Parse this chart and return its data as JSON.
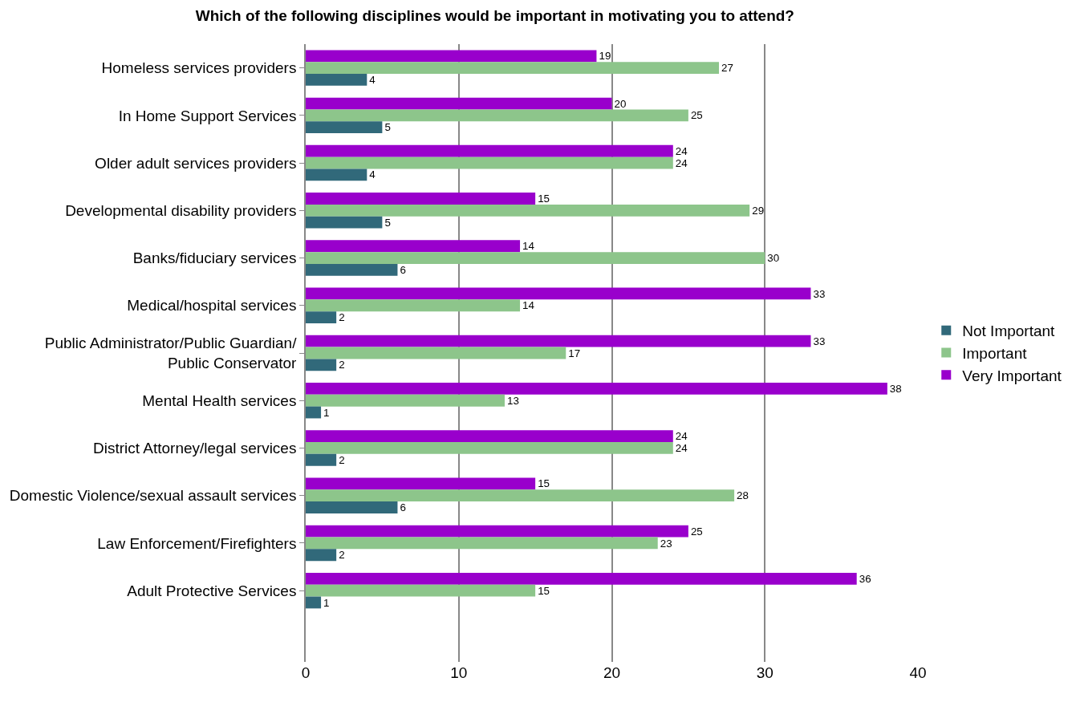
{
  "chart_data": {
    "type": "bar",
    "orientation": "horizontal",
    "title": "Which of the following disciplines would be important in motivating you to attend?",
    "categories": [
      "Homeless services providers",
      "In Home Support Services",
      "Older adult services providers",
      "Developmental disability providers",
      "Banks/fiduciary services",
      "Medical/hospital services",
      "Public Administrator/Public Guardian/Public Conservator",
      "Mental Health services",
      "District Attorney/legal services",
      "Domestic Violence/sexual assault services",
      "Law Enforcement/Firefighters",
      "Adult Protective Services",
      null
    ],
    "series": [
      {
        "name": "Not Important",
        "color": "#31697a",
        "values": [
          4,
          5,
          4,
          5,
          6,
          2,
          2,
          1,
          2,
          6,
          2,
          1,
          null
        ]
      },
      {
        "name": "Important",
        "color": "#8dc58b",
        "values": [
          27,
          25,
          24,
          29,
          30,
          14,
          17,
          13,
          24,
          28,
          23,
          15,
          null
        ]
      },
      {
        "name": "Very Important",
        "color": "#9900cc",
        "values": [
          19,
          20,
          24,
          15,
          14,
          33,
          33,
          38,
          24,
          15,
          25,
          36,
          null
        ]
      }
    ],
    "xlim": [
      0,
      40
    ],
    "xticks": [
      0,
      10,
      20,
      30,
      40
    ],
    "grid": "x",
    "legend": "right",
    "data_labels": true
  }
}
